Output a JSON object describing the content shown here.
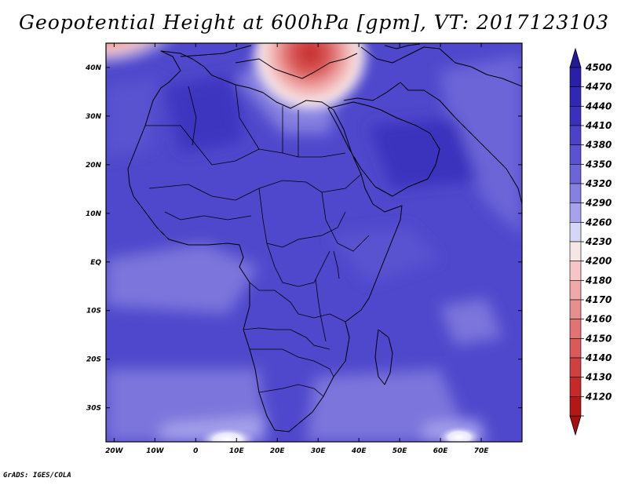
{
  "title": "Geopotential Height at 600hPa [gpm], VT: 2017123103",
  "footer": "GrADS: IGES/COLA",
  "chart_data": {
    "type": "heatmap",
    "xlim": [
      -22,
      80
    ],
    "ylim": [
      -37,
      45
    ],
    "x_ticks": [
      {
        "value": -20,
        "label": "20W"
      },
      {
        "value": -10,
        "label": "10W"
      },
      {
        "value": 0,
        "label": "0"
      },
      {
        "value": 10,
        "label": "10E"
      },
      {
        "value": 20,
        "label": "20E"
      },
      {
        "value": 30,
        "label": "30E"
      },
      {
        "value": 40,
        "label": "40E"
      },
      {
        "value": 50,
        "label": "50E"
      },
      {
        "value": 60,
        "label": "60E"
      },
      {
        "value": 70,
        "label": "70E"
      }
    ],
    "y_ticks": [
      {
        "value": 40,
        "label": "40N"
      },
      {
        "value": 30,
        "label": "30N"
      },
      {
        "value": 20,
        "label": "20N"
      },
      {
        "value": 10,
        "label": "10N"
      },
      {
        "value": 0,
        "label": "EQ"
      },
      {
        "value": -10,
        "label": "10S"
      },
      {
        "value": -20,
        "label": "20S"
      },
      {
        "value": -30,
        "label": "30S"
      }
    ],
    "colorbar": {
      "levels": [
        {
          "label": "4500",
          "color": "#2a20a8"
        },
        {
          "label": "4470",
          "color": "#3027b4"
        },
        {
          "label": "4440",
          "color": "#3a30bd"
        },
        {
          "label": "4410",
          "color": "#4b42c8"
        },
        {
          "label": "4380",
          "color": "#5a52d0"
        },
        {
          "label": "4350",
          "color": "#6c65d8"
        },
        {
          "label": "4320",
          "color": "#8680e0"
        },
        {
          "label": "4290",
          "color": "#a6a2eb"
        },
        {
          "label": "4260",
          "color": "#d8d6f7"
        },
        {
          "label": "4230",
          "color": "#f7e6e6"
        },
        {
          "label": "4200",
          "color": "#f6c6c6"
        },
        {
          "label": "4180",
          "color": "#f0a8a8"
        },
        {
          "label": "4170",
          "color": "#e88e8e"
        },
        {
          "label": "4160",
          "color": "#e07474"
        },
        {
          "label": "4150",
          "color": "#d85a5a"
        },
        {
          "label": "4140",
          "color": "#cf4040"
        },
        {
          "label": "4130",
          "color": "#c42a2a"
        },
        {
          "label": "4120",
          "color": "#b31818"
        }
      ],
      "top_triangle_color": "#231a9a",
      "bottom_triangle_color": "#a80f0f"
    }
  }
}
